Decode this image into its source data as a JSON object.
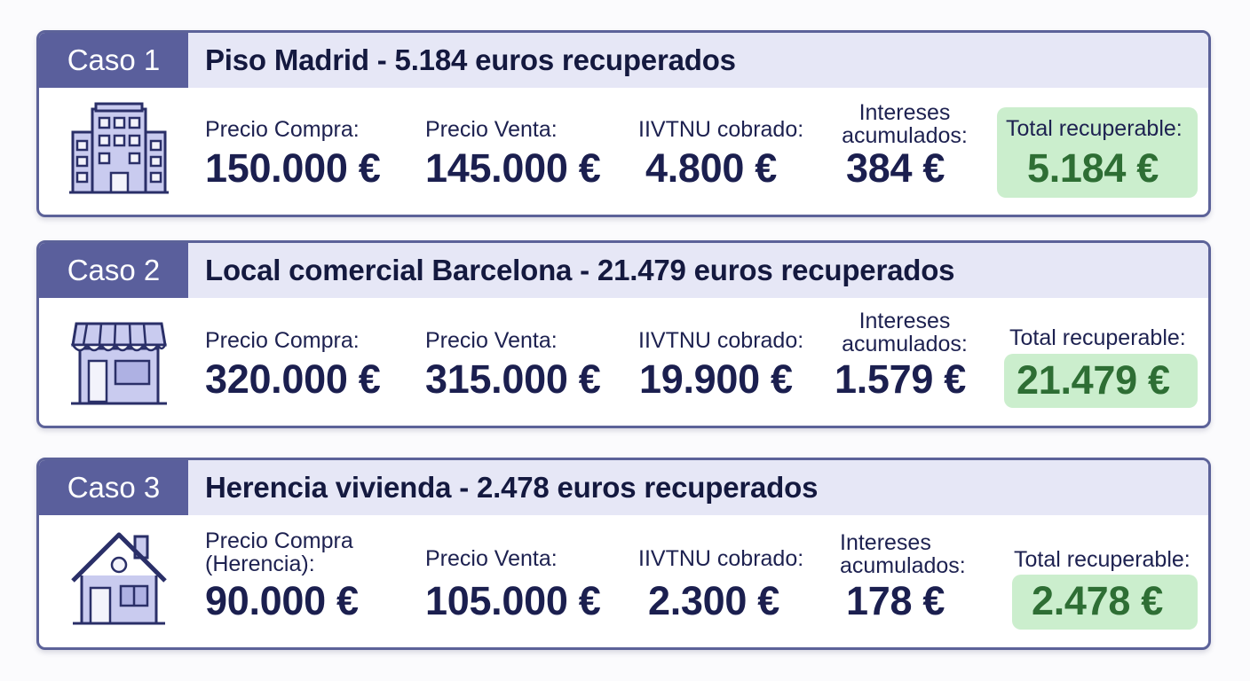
{
  "cases": [
    {
      "badge": "Caso 1",
      "title": "Piso Madrid - 5.184 euros recuperados",
      "icon": "building-icon",
      "purchase_label": "Precio Compra:",
      "purchase_value": "150.000 €",
      "sale_label": "Precio Venta:",
      "sale_value": "145.000 €",
      "tax_label": "IIVTNU cobrado:",
      "tax_value": "4.800 €",
      "interest_label_1": "Intereses",
      "interest_label_2": "acumulados:",
      "interest_value": "384 €",
      "total_label": "Total recuperable:",
      "total_value": "5.184 €"
    },
    {
      "badge": "Caso 2",
      "title": "Local comercial Barcelona - 21.479 euros recuperados",
      "icon": "shop-icon",
      "purchase_label": "Precio Compra:",
      "purchase_value": "320.000 €",
      "sale_label": "Precio Venta:",
      "sale_value": "315.000 €",
      "tax_label": "IIVTNU cobrado:",
      "tax_value": "19.900 €",
      "interest_label_1": "Intereses",
      "interest_label_2": "acumulados:",
      "interest_value": "1.579 €",
      "total_label": "Total recuperable:",
      "total_value": "21.479 €"
    },
    {
      "badge": "Caso 3",
      "title": "Herencia vivienda - 2.478 euros recuperados",
      "icon": "house-icon",
      "purchase_label_1": "Precio Compra",
      "purchase_label_2": "(Herencia):",
      "purchase_value": "90.000 €",
      "sale_label": "Precio Venta:",
      "sale_value": "105.000 €",
      "tax_label": "IIVTNU cobrado:",
      "tax_value": "2.300 €",
      "interest_label_1": "Intereses",
      "interest_label_2": "acumulados:",
      "interest_value": "178 €",
      "total_label": "Total recuperable:",
      "total_value": "2.478 €"
    }
  ],
  "colors": {
    "badge_bg": "#5a5f9c",
    "header_bg": "#e6e7f6",
    "border": "#5c6299",
    "value_text": "#1b1f4f",
    "total_bg": "#cbeecd",
    "total_text": "#2e6e34"
  }
}
